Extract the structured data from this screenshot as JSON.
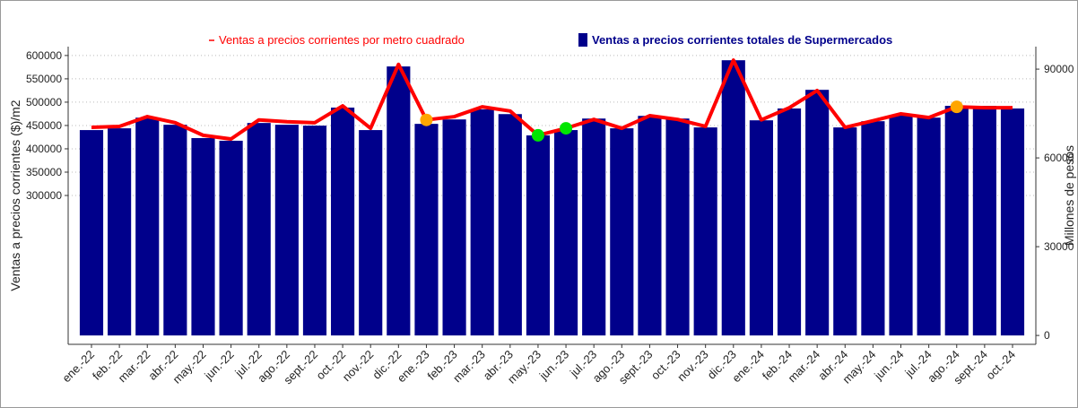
{
  "chart_data": {
    "type": "bar_line",
    "categories": [
      "ene.-22",
      "feb.-22",
      "mar.-22",
      "abr.-22",
      "may.-22",
      "jun.-22",
      "jul.-22",
      "ago.-22",
      "sept.-22",
      "oct.-22",
      "nov.-22",
      "dic.-22",
      "ene.-23",
      "feb.-23",
      "mar.-23",
      "abr.-23",
      "may.-23",
      "jun.-23",
      "jul.-23",
      "ago.-23",
      "sept.-23",
      "oct.-23",
      "nov.-23",
      "dic.-23",
      "ene.-24",
      "feb.-24",
      "mar.-24",
      "abr.-24",
      "may.-24",
      "jun.-24",
      "jul.-24",
      "ago.-24",
      "sept.-24",
      "oct.-24"
    ],
    "series": [
      {
        "name": "Ventas a precios corrientes totales de Supermercados",
        "type": "bar",
        "axis": "y2",
        "color": "#00008b",
        "values": [
          69400,
          70000,
          73600,
          71200,
          66700,
          65800,
          71800,
          71200,
          70900,
          77000,
          69400,
          90900,
          71500,
          73000,
          76400,
          74800,
          67600,
          69400,
          73300,
          70000,
          74200,
          73300,
          70300,
          93000,
          72700,
          76700,
          83000,
          70300,
          72400,
          74500,
          73600,
          77600,
          77600,
          76700
        ]
      },
      {
        "name": "Ventas a precios corrientes por metro cuadrado",
        "type": "line",
        "axis": "y",
        "color": "#ff0000",
        "values": [
          446000,
          448000,
          469000,
          456000,
          429000,
          421000,
          462000,
          458000,
          456000,
          492000,
          444000,
          581000,
          462000,
          469000,
          490000,
          481000,
          429000,
          444000,
          463000,
          444000,
          471000,
          463000,
          448000,
          590000,
          462000,
          488000,
          525000,
          446000,
          460000,
          475000,
          467000,
          490000,
          488000,
          488000
        ],
        "marker_colors": [
          null,
          null,
          null,
          null,
          null,
          null,
          null,
          null,
          null,
          null,
          null,
          null,
          "#ffa500",
          null,
          null,
          null,
          "#00e600",
          "#00e600",
          null,
          null,
          null,
          null,
          null,
          null,
          null,
          null,
          null,
          null,
          null,
          null,
          null,
          "#ffa500",
          null,
          null
        ]
      }
    ],
    "y_label": "Ventas a precios corrientes ($)/m2",
    "y2_label": "Millones de pesos",
    "ylim": [
      -19000,
      619000
    ],
    "yticks": [
      300000,
      350000,
      400000,
      450000,
      500000,
      550000,
      600000
    ],
    "y2lim": [
      -3000,
      97600
    ],
    "y2ticks": [
      0,
      30000,
      60000,
      90000
    ],
    "grid": true
  }
}
